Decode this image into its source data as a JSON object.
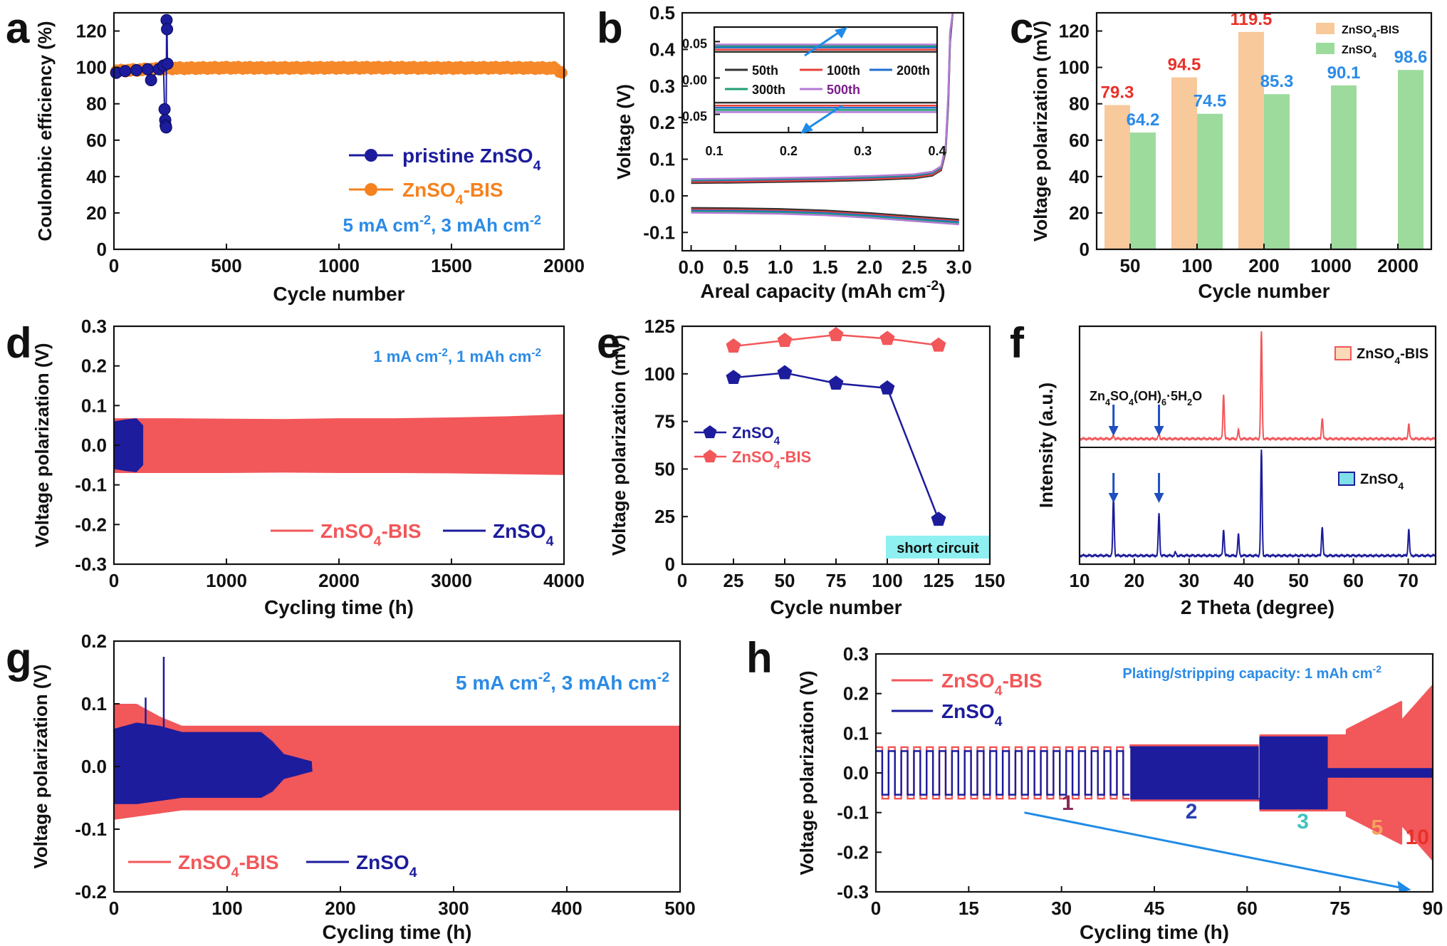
{
  "chart_data": [
    {
      "panel": "a",
      "type": "scatter",
      "xlabel": "Cycle number",
      "ylabel": "Coulombic efficiency (%)",
      "xlim": [
        0,
        2000
      ],
      "ylim": [
        0,
        130
      ],
      "xticks": [
        0,
        500,
        1000,
        1500,
        2000
      ],
      "yticks": [
        0,
        20,
        40,
        60,
        80,
        100,
        120
      ],
      "annotation": "5 mA cm-2, 3 mAh cm-2",
      "legend": [
        {
          "name": "pristine ZnSO4",
          "color": "#1c1c9c"
        },
        {
          "name": "ZnSO4-BIS",
          "color": "#f5821f"
        }
      ],
      "series": [
        {
          "name": "pristine ZnSO4",
          "x": [
            10,
            50,
            100,
            150,
            165,
            200,
            220,
            225,
            228,
            230,
            232,
            234,
            236,
            238
          ],
          "y": [
            97,
            98,
            98.5,
            99,
            93,
            99,
            101,
            77,
            71,
            68,
            67,
            126,
            121,
            102
          ]
        },
        {
          "name": "ZnSO4-BIS",
          "x": [
            0,
            250,
            500,
            750,
            1000,
            1250,
            1500,
            1750,
            1960,
            1990
          ],
          "y": [
            98,
            99.5,
            99.8,
            99.7,
            99.8,
            99.8,
            99.7,
            99.8,
            99.6,
            97
          ]
        }
      ]
    },
    {
      "panel": "b",
      "type": "line",
      "xlabel": "Areal capacity (mAh cm-2)",
      "ylabel": "Voltage (V)",
      "xlim": [
        -0.1,
        3.05
      ],
      "ylim": [
        -0.15,
        0.5
      ],
      "xticks": [
        0.0,
        0.5,
        1.0,
        1.5,
        2.0,
        2.5,
        3.0
      ],
      "yticks": [
        -0.1,
        0.0,
        0.1,
        0.2,
        0.3,
        0.4,
        0.5
      ],
      "legend": [
        {
          "name": "50th",
          "color": "#333333"
        },
        {
          "name": "100th",
          "color": "#e8403a"
        },
        {
          "name": "200th",
          "color": "#1f6fd1"
        },
        {
          "name": "300th",
          "color": "#1f9e72"
        },
        {
          "name": "500th",
          "color": "#b57ad6"
        }
      ],
      "charge_x": [
        0.0,
        0.5,
        1.0,
        1.5,
        2.0,
        2.5,
        2.7,
        2.8,
        2.85,
        2.88,
        2.9,
        2.93
      ],
      "charge_series": [
        {
          "name": "50th",
          "y": [
            0.035,
            0.036,
            0.038,
            0.04,
            0.043,
            0.048,
            0.055,
            0.07,
            0.12,
            0.25,
            0.42,
            0.5
          ]
        },
        {
          "name": "100th",
          "y": [
            0.038,
            0.039,
            0.041,
            0.043,
            0.046,
            0.051,
            0.058,
            0.073,
            0.125,
            0.26,
            0.43,
            0.5
          ]
        },
        {
          "name": "200th",
          "y": [
            0.042,
            0.043,
            0.045,
            0.047,
            0.05,
            0.055,
            0.062,
            0.077,
            0.13,
            0.27,
            0.44,
            0.5
          ]
        },
        {
          "name": "300th",
          "y": [
            0.044,
            0.045,
            0.047,
            0.049,
            0.052,
            0.057,
            0.064,
            0.079,
            0.132,
            0.275,
            0.445,
            0.5
          ]
        },
        {
          "name": "500th",
          "y": [
            0.046,
            0.047,
            0.049,
            0.051,
            0.054,
            0.059,
            0.066,
            0.081,
            0.135,
            0.28,
            0.45,
            0.5
          ]
        }
      ],
      "discharge_x": [
        0.0,
        0.5,
        1.0,
        1.5,
        2.0,
        2.5,
        3.0
      ],
      "discharge_series": [
        {
          "name": "50th",
          "y": [
            -0.033,
            -0.034,
            -0.036,
            -0.04,
            -0.047,
            -0.056,
            -0.065
          ]
        },
        {
          "name": "100th",
          "y": [
            -0.037,
            -0.038,
            -0.04,
            -0.044,
            -0.051,
            -0.06,
            -0.069
          ]
        },
        {
          "name": "200th",
          "y": [
            -0.04,
            -0.041,
            -0.043,
            -0.047,
            -0.054,
            -0.063,
            -0.072
          ]
        },
        {
          "name": "300th",
          "y": [
            -0.043,
            -0.044,
            -0.046,
            -0.05,
            -0.057,
            -0.066,
            -0.075
          ]
        },
        {
          "name": "500th",
          "y": [
            -0.046,
            -0.047,
            -0.049,
            -0.053,
            -0.06,
            -0.069,
            -0.078
          ]
        }
      ],
      "inset": {
        "xlim": [
          0.1,
          0.4
        ],
        "ylim": [
          -0.075,
          0.07
        ],
        "xticks": [
          0.1,
          0.2,
          0.3,
          0.4
        ],
        "xtick_labels": [
          "0.1",
          "0.2",
          "0.3",
          "0.4"
        ],
        "yticks": [
          -0.05,
          0.0,
          0.05
        ],
        "ytick_labels": [
          "-0.05",
          "0.00",
          "0.05"
        ],
        "charge_levels": [
          0.036,
          0.039,
          0.042,
          0.044,
          0.046
        ],
        "discharge_levels": [
          -0.034,
          -0.038,
          -0.041,
          -0.044,
          -0.047
        ]
      }
    },
    {
      "panel": "c",
      "type": "bar",
      "xlabel": "Cycle number",
      "ylabel": "Voltage polarization (mV)",
      "ylim": [
        0,
        130
      ],
      "yticks": [
        0,
        20,
        40,
        60,
        80,
        100,
        120
      ],
      "categories": [
        "50",
        "100",
        "200",
        "1000",
        "2000"
      ],
      "series": [
        {
          "name": "ZnSO4-BIS",
          "color": "#f8c99b",
          "label_color": "#e8312a",
          "values": [
            79.3,
            94.5,
            119.5,
            null,
            null
          ],
          "labels": [
            "79.3",
            "94.5",
            "119.5",
            "",
            ""
          ]
        },
        {
          "name": "ZnSO4",
          "color": "#9ddb9d",
          "label_color": "#2b8be6",
          "values": [
            64.2,
            74.5,
            85.3,
            90.1,
            98.6
          ],
          "labels": [
            "64.2",
            "74.5",
            "85.3",
            "90.1",
            "98.6"
          ]
        }
      ]
    },
    {
      "panel": "d",
      "type": "area",
      "xlabel": "Cycling time (h)",
      "ylabel": "Voltage polarization (V)",
      "xlim": [
        0,
        4000
      ],
      "ylim": [
        -0.3,
        0.3
      ],
      "xticks": [
        0,
        1000,
        2000,
        3000,
        4000
      ],
      "yticks": [
        -0.3,
        -0.2,
        -0.1,
        0.0,
        0.1,
        0.2,
        0.3
      ],
      "annotation": "1 mA cm-2, 1 mAh cm-2",
      "series": [
        {
          "name": "ZnSO4-BIS",
          "color": "#f2575a",
          "x": [
            0,
            500,
            1000,
            1500,
            2000,
            2500,
            3000,
            3500,
            4000
          ],
          "upper": [
            0.068,
            0.068,
            0.067,
            0.066,
            0.068,
            0.068,
            0.07,
            0.073,
            0.078
          ],
          "lower": [
            -0.07,
            -0.07,
            -0.07,
            -0.069,
            -0.07,
            -0.07,
            -0.071,
            -0.073,
            -0.075
          ]
        },
        {
          "name": "ZnSO4",
          "color": "#1c1c9c",
          "x": [
            0,
            100,
            200,
            260
          ],
          "upper": [
            0.06,
            0.065,
            0.068,
            0.05
          ],
          "lower": [
            -0.06,
            -0.065,
            -0.068,
            -0.05
          ]
        }
      ]
    },
    {
      "panel": "e",
      "type": "line",
      "xlabel": "Cycle number",
      "ylabel": "Voltage polarization (mV)",
      "xlim": [
        0,
        150
      ],
      "ylim": [
        0,
        125
      ],
      "xticks": [
        0,
        25,
        50,
        75,
        100,
        125,
        150
      ],
      "yticks": [
        0,
        25,
        50,
        75,
        100,
        125
      ],
      "annotation": "short circuit",
      "series": [
        {
          "name": "ZnSO4",
          "color": "#1c1c9c",
          "x": [
            25,
            50,
            75,
            100,
            125
          ],
          "y": [
            98,
            100.5,
            95,
            92.5,
            23.5
          ]
        },
        {
          "name": "ZnSO4-BIS",
          "color": "#f2575a",
          "x": [
            25,
            50,
            75,
            100,
            125
          ],
          "y": [
            114.5,
            117.5,
            120.5,
            118.5,
            115
          ]
        }
      ]
    },
    {
      "panel": "f",
      "type": "line",
      "xlabel": "2 Theta (degree)",
      "ylabel": "Intensity (a.u.)",
      "xlim": [
        10,
        75
      ],
      "xticks": [
        10,
        20,
        30,
        40,
        50,
        60,
        70
      ],
      "annotation": "Zn4SO4(OH)6·5H2O",
      "marked_peaks": [
        16.2,
        24.5
      ],
      "series": [
        {
          "name": "ZnSO4-BIS",
          "color": "#f2575a",
          "fill": "#fcd9b8",
          "peaks": [
            [
              16.2,
              0.03
            ],
            [
              24.5,
              0.04
            ],
            [
              36.3,
              0.42
            ],
            [
              39.0,
              0.08
            ],
            [
              43.2,
              1.0
            ],
            [
              54.3,
              0.2
            ],
            [
              70.1,
              0.14
            ]
          ]
        },
        {
          "name": "ZnSO4",
          "color": "#1c1c9c",
          "fill": "#7fe0ea",
          "peaks": [
            [
              16.2,
              0.55
            ],
            [
              24.5,
              0.4
            ],
            [
              27.5,
              0.03
            ],
            [
              36.3,
              0.25
            ],
            [
              39.0,
              0.2
            ],
            [
              43.2,
              1.0
            ],
            [
              54.3,
              0.28
            ],
            [
              70.1,
              0.25
            ]
          ]
        }
      ]
    },
    {
      "panel": "g",
      "type": "area",
      "xlabel": "Cycling time (h)",
      "ylabel": "Voltage polarization (V)",
      "xlim": [
        0,
        500
      ],
      "ylim": [
        -0.2,
        0.2
      ],
      "xticks": [
        0,
        100,
        200,
        300,
        400,
        500
      ],
      "yticks": [
        -0.2,
        -0.1,
        0.0,
        0.1,
        0.2
      ],
      "annotation": "5 mA cm-2, 3 mAh cm-2",
      "series": [
        {
          "name": "ZnSO4-BIS",
          "color": "#f2575a",
          "x": [
            0,
            20,
            40,
            60,
            100,
            200,
            300,
            400,
            500
          ],
          "upper": [
            0.1,
            0.1,
            0.08,
            0.065,
            0.065,
            0.065,
            0.065,
            0.065,
            0.065
          ],
          "lower": [
            -0.085,
            -0.08,
            -0.075,
            -0.07,
            -0.07,
            -0.07,
            -0.07,
            -0.07,
            -0.07
          ]
        },
        {
          "name": "ZnSO4",
          "color": "#1c1c9c",
          "x": [
            0,
            20,
            40,
            60,
            100,
            130,
            140,
            150,
            175
          ],
          "upper": [
            0.06,
            0.07,
            0.065,
            0.055,
            0.055,
            0.055,
            0.04,
            0.02,
            0.008
          ],
          "lower": [
            -0.06,
            -0.06,
            -0.055,
            -0.05,
            -0.05,
            -0.05,
            -0.04,
            -0.02,
            -0.008
          ],
          "spike": [
            [
              44,
              0.175
            ],
            [
              28,
              0.11
            ]
          ]
        }
      ]
    },
    {
      "panel": "h",
      "type": "line",
      "xlabel": "Cycling time (h)",
      "ylabel": "Voltage polarization (V)",
      "xlim": [
        0,
        90
      ],
      "ylim": [
        -0.3,
        0.3
      ],
      "xticks": [
        0,
        15,
        30,
        45,
        60,
        75,
        90
      ],
      "yticks": [
        -0.3,
        -0.2,
        -0.1,
        0.0,
        0.1,
        0.2,
        0.3
      ],
      "annotation": "Plating/stripping capacity: 1 mAh cm-2",
      "current_labels": [
        {
          "text": "1",
          "x": 31,
          "y": -0.093,
          "color": "#8b2a5a"
        },
        {
          "text": "2",
          "x": 51,
          "y": -0.115,
          "color": "#2a3fb0"
        },
        {
          "text": "3",
          "x": 69,
          "y": -0.14,
          "color": "#3fc2c0"
        },
        {
          "text": "5",
          "x": 81,
          "y": -0.155,
          "color": "#f4a460"
        },
        {
          "text": "10",
          "x": 87.5,
          "y": -0.18,
          "color": "#e8312a"
        }
      ],
      "series": [
        {
          "name": "ZnSO4-BIS",
          "color": "#f2575a",
          "segments": [
            [
              0,
              41,
              0.065,
              20
            ],
            [
              41,
              62,
              0.07,
              40
            ],
            [
              62,
              76,
              0.095,
              50
            ],
            [
              76,
              85,
              0.18,
              60
            ],
            [
              85,
              90,
              0.22,
              60
            ]
          ]
        },
        {
          "name": "ZnSO4",
          "color": "#1c1c9c",
          "segments": [
            [
              0,
              41,
              0.055,
              20
            ],
            [
              41,
              62,
              0.065,
              40
            ],
            [
              62,
              73,
              0.09,
              50
            ],
            [
              73,
              90,
              0.01,
              60
            ]
          ]
        }
      ]
    }
  ],
  "panel_labels": [
    "a",
    "b",
    "c",
    "d",
    "e",
    "f",
    "g",
    "h"
  ],
  "colors": {
    "navy": "#1c1c9c",
    "orange": "#f5821f",
    "red": "#f2575a",
    "blue_text": "#2b8be6",
    "green_bar": "#9ddb9d",
    "peach_bar": "#f8c99b"
  }
}
